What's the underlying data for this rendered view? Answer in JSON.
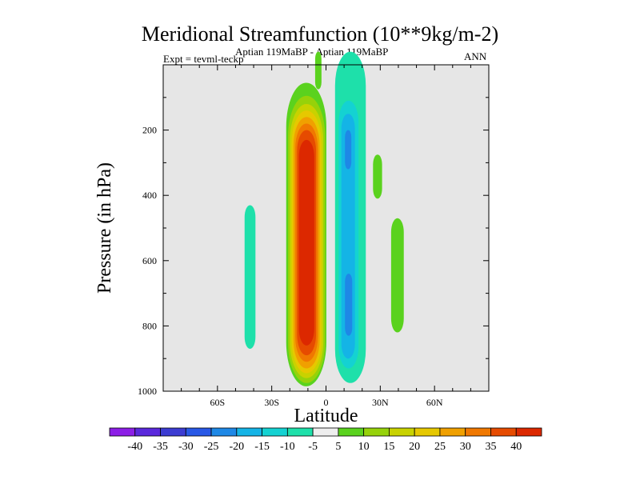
{
  "chart_data": {
    "type": "contour",
    "title": "Meridional Streamfunction (10**9kg/m-2)",
    "subtitle_center": "Aptian  119MaBP - Aptian  119MaBP",
    "subtitle_left": "Expt = tevml-teckp",
    "subtitle_right": "ANN",
    "xlabel": "Latitude",
    "ylabel": "Pressure (in hPa)",
    "xlim": [
      -90,
      90
    ],
    "ylim": [
      1000,
      0
    ],
    "xticks": [
      -60,
      -30,
      0,
      30,
      60
    ],
    "xtick_labels": [
      "60S",
      "30S",
      "0",
      "30N",
      "60N"
    ],
    "yticks": [
      200,
      400,
      600,
      800,
      1000
    ],
    "ytick_labels": [
      "200",
      "400",
      "600",
      "800",
      "1000"
    ],
    "missing_fill": "#e6e6e6",
    "colorbar": {
      "labels": [
        "-40",
        "-35",
        "-30",
        "-25",
        "-20",
        "-15",
        "-10",
        "-5",
        "5",
        "10",
        "15",
        "20",
        "25",
        "30",
        "35",
        "40"
      ],
      "colors": [
        "#8c1ee6",
        "#5a28dc",
        "#3c3cd2",
        "#2858e6",
        "#1e88e6",
        "#14b4e6",
        "#14d2d2",
        "#1ee0aa",
        "#eeeeee",
        "#5ad21e",
        "#96d20a",
        "#c8d200",
        "#e6c800",
        "#f0a000",
        "#f07800",
        "#e64b00",
        "#dc2800"
      ]
    },
    "features": [
      {
        "name": "positive-cell-main",
        "sign": "positive",
        "lat_range": [
          -22,
          0
        ],
        "p_range": [
          55,
          985
        ],
        "peak": 40
      },
      {
        "name": "positive-cell-upper",
        "sign": "positive",
        "lat_range": [
          -6,
          -3
        ],
        "p_range": [
          0,
          75
        ],
        "peak": 5
      },
      {
        "name": "negative-cell-north",
        "sign": "negative",
        "lat_range": [
          5,
          22
        ],
        "p_range": [
          0,
          975
        ],
        "peak": -20
      },
      {
        "name": "negative-cell-south",
        "sign": "negative",
        "lat_range": [
          -45,
          -39
        ],
        "p_range": [
          430,
          870
        ],
        "peak": -5
      },
      {
        "name": "positive-cell-30n-upper",
        "sign": "positive",
        "lat_range": [
          26,
          31
        ],
        "p_range": [
          275,
          410
        ],
        "peak": 5
      },
      {
        "name": "positive-cell-40n",
        "sign": "positive",
        "lat_range": [
          36,
          43
        ],
        "p_range": [
          470,
          820
        ],
        "peak": 5
      }
    ]
  }
}
